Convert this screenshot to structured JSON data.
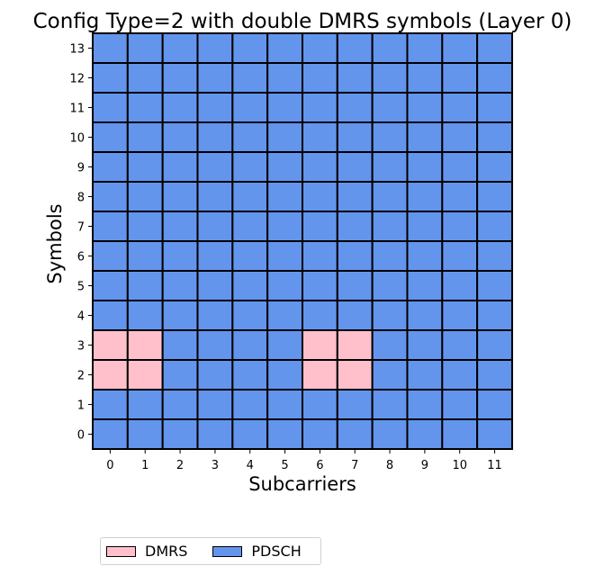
{
  "chart_data": {
    "type": "heatmap",
    "title": "Config Type=2 with double DMRS symbols (Layer 0)",
    "xlabel": "Subcarriers",
    "ylabel": "Symbols",
    "x_ticks": [
      "0",
      "1",
      "2",
      "3",
      "4",
      "5",
      "6",
      "7",
      "8",
      "9",
      "10",
      "11"
    ],
    "y_ticks": [
      "0",
      "1",
      "2",
      "3",
      "4",
      "5",
      "6",
      "7",
      "8",
      "9",
      "10",
      "11",
      "12",
      "13"
    ],
    "categories": [
      "DMRS",
      "PDSCH"
    ],
    "colors": {
      "DMRS": "#ffc0cb",
      "PDSCH": "#6495ed"
    },
    "grid_line_color": "#000000",
    "dmrs_cells": [
      [
        0,
        2
      ],
      [
        1,
        2
      ],
      [
        6,
        2
      ],
      [
        7,
        2
      ],
      [
        0,
        3
      ],
      [
        1,
        3
      ],
      [
        6,
        3
      ],
      [
        7,
        3
      ]
    ],
    "default_category": "PDSCH",
    "legend": {
      "position": "bottom-left",
      "entries": [
        {
          "label": "DMRS",
          "color": "#ffc0cb"
        },
        {
          "label": "PDSCH",
          "color": "#6495ed"
        }
      ]
    }
  }
}
